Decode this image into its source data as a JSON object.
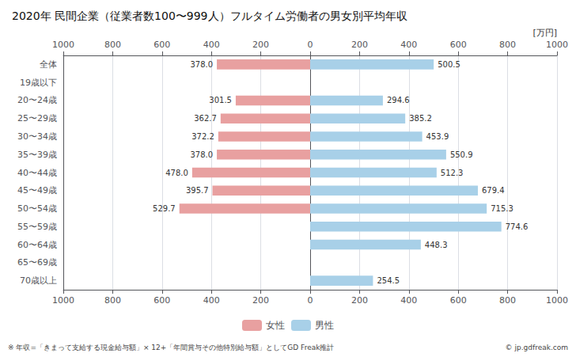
{
  "chart_data": {
    "type": "bar",
    "orientation": "horizontal",
    "title": "2020年 民間企業（従業者数100〜999人）フルタイム労働者の男女別平均年収",
    "xlabel": "[万円]",
    "annotations": [
      "※ 年収=「きまって支給する現金給与額」× 12+「年間賞与その他特別給与額」としてGD Freak推計",
      "© jp.gdfreak.com"
    ],
    "categories": [
      "全体",
      "19歳以下",
      "20〜24歳",
      "25〜29歳",
      "30〜34歳",
      "35〜39歳",
      "40〜44歳",
      "45〜49歳",
      "50〜54歳",
      "55〜59歳",
      "60〜64歳",
      "65〜69歳",
      "70歳以上"
    ],
    "series": [
      {
        "name": "女性",
        "color": "#e8a0a0",
        "values": [
          378.0,
          0,
          301.5,
          362.7,
          372.2,
          378.0,
          478.0,
          395.7,
          529.7,
          0,
          0,
          0,
          0
        ],
        "value_labels": [
          "378.0",
          null,
          "301.5",
          "362.7",
          "372.2",
          "378.0",
          "478.0",
          "395.7",
          "529.7",
          null,
          null,
          null,
          null
        ]
      },
      {
        "name": "男性",
        "color": "#a8d0e8",
        "values": [
          500.5,
          0,
          294.6,
          385.2,
          453.9,
          550.9,
          512.3,
          679.4,
          715.3,
          774.6,
          448.3,
          0,
          254.5
        ],
        "value_labels": [
          "500.5",
          null,
          "294.6",
          "385.2",
          "453.9",
          "550.9",
          "512.3",
          "679.4",
          "715.3",
          "774.6",
          "448.3",
          null,
          "254.5"
        ]
      }
    ],
    "xlim": [
      0,
      1000
    ],
    "xticks": [
      0,
      200,
      400,
      600,
      800,
      1000
    ],
    "grid": true,
    "data_labels": true,
    "legend": "bottom"
  }
}
